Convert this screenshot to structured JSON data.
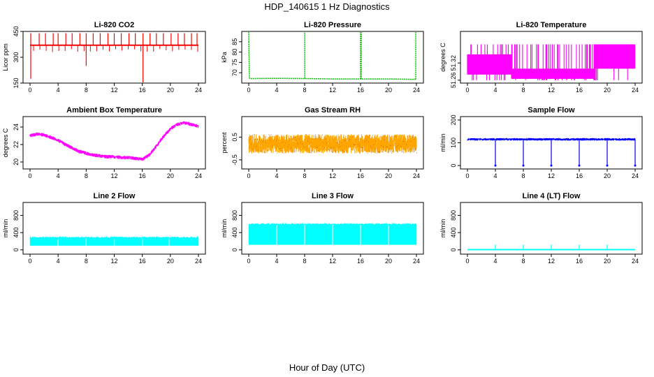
{
  "figure": {
    "title": "HDP_140615  1 Hz Diagnostics",
    "xlabel": "Hour of Day (UTC)"
  },
  "chart_data": [
    {
      "type": "line",
      "title": "Li-820 CO2",
      "ylabel": "Licor ppm",
      "xlim": [
        0,
        24
      ],
      "ylim": [
        150,
        450
      ],
      "xticks": [
        0,
        4,
        8,
        12,
        16,
        20,
        24
      ],
      "yticks": [
        150,
        300,
        450
      ],
      "color": "#ff0000",
      "style": "spiky",
      "series": [
        {
          "x": [
            0,
            2,
            4,
            6,
            8,
            10,
            12,
            14,
            16,
            18,
            20,
            22,
            24
          ],
          "y": [
            370,
            370,
            370,
            370,
            370,
            370,
            370,
            370,
            370,
            370,
            370,
            370,
            370
          ]
        }
      ],
      "spikes_up": [
        0.1,
        1.3,
        2.2,
        3.3,
        4.0,
        5.1,
        6.0,
        7.1,
        8.0,
        9.0,
        10.0,
        11.1,
        12.0,
        13.0,
        14.1,
        15.0,
        16.1,
        17.1,
        18.0,
        19.0,
        20.1,
        21.1,
        22.0,
        23.0,
        23.8
      ],
      "spike_up_value": 440,
      "spikes_down": [
        {
          "x": 0.1,
          "y": 175
        },
        {
          "x": 8.0,
          "y": 250
        },
        {
          "x": 16.1,
          "y": 150
        }
      ]
    },
    {
      "type": "line",
      "title": "Li-820 Pressure",
      "ylabel": "kPa",
      "xlim": [
        0,
        24
      ],
      "ylim": [
        65,
        90
      ],
      "xticks": [
        0,
        4,
        8,
        12,
        16,
        20,
        24
      ],
      "yticks": [
        70,
        75,
        80,
        85
      ],
      "color": "#00c000",
      "style": "dotted",
      "series": [
        {
          "x": [
            0,
            0.1,
            0.2,
            4,
            8,
            12,
            16,
            20,
            24
          ],
          "y": [
            85,
            67.5,
            67.2,
            67.3,
            67.2,
            67.0,
            67.0,
            67.0,
            66.8
          ]
        }
      ],
      "spikes_up": [
        0.0,
        8.0,
        16.0,
        16.1,
        23.9
      ],
      "spike_up_value": 90
    },
    {
      "type": "line",
      "title": "Li-820 Temperature",
      "ylabel": "degrees C",
      "xlim": [
        0,
        24
      ],
      "ylim": [
        51.25,
        51.43
      ],
      "xticks": [
        0,
        4,
        8,
        12,
        16,
        20,
        24
      ],
      "yticks": [
        51.26,
        51.32
      ],
      "color": "#ff00ff",
      "style": "bands",
      "series": [
        {
          "x": [
            0,
            6,
            6.5,
            18,
            18.3,
            24
          ],
          "y": [
            51.35,
            51.35,
            51.3,
            51.3,
            51.35,
            51.38
          ]
        }
      ]
    },
    {
      "type": "line",
      "title": "Ambient Box Temperature",
      "ylabel": "degrees C",
      "xlim": [
        0,
        24
      ],
      "ylim": [
        19.2,
        25.2
      ],
      "xticks": [
        0,
        4,
        8,
        12,
        16,
        20,
        24
      ],
      "yticks": [
        20,
        22,
        24
      ],
      "color": "#ff00ff",
      "style": "noisy",
      "noise": 0.3,
      "series": [
        {
          "x": [
            0,
            1,
            2,
            3,
            4,
            5,
            6,
            7,
            8,
            9,
            10,
            11,
            12,
            13,
            14,
            15,
            16,
            17,
            18,
            19,
            20,
            21,
            22,
            23,
            24
          ],
          "y": [
            23.0,
            23.2,
            23.1,
            22.8,
            22.5,
            22.0,
            21.6,
            21.2,
            21.0,
            20.8,
            20.7,
            20.6,
            20.6,
            20.5,
            20.5,
            20.4,
            20.3,
            20.8,
            21.8,
            22.9,
            23.8,
            24.3,
            24.5,
            24.3,
            24.1
          ]
        }
      ]
    },
    {
      "type": "line",
      "title": "Gas Stream RH",
      "ylabel": "percent",
      "xlim": [
        0,
        24
      ],
      "ylim": [
        -0.9,
        1.4
      ],
      "xticks": [
        0,
        4,
        8,
        12,
        16,
        20,
        24
      ],
      "yticks": [
        -0.5,
        0.5
      ],
      "color": "#ffa500",
      "style": "noiseband",
      "noise": 0.6,
      "series": [
        {
          "x": [
            0,
            24
          ],
          "y": [
            0.2,
            0.2
          ]
        }
      ]
    },
    {
      "type": "line",
      "title": "Sample Flow",
      "ylabel": "ml/min",
      "xlim": [
        0,
        24
      ],
      "ylim": [
        -15,
        215
      ],
      "xticks": [
        0,
        4,
        8,
        12,
        16,
        20,
        24
      ],
      "yticks": [
        0,
        100,
        200
      ],
      "color": "#0000ff",
      "style": "noisy",
      "noise": 8,
      "series": [
        {
          "x": [
            0,
            24
          ],
          "y": [
            115,
            115
          ]
        }
      ],
      "spikes_down": [
        {
          "x": 4.0,
          "y": 0
        },
        {
          "x": 8.0,
          "y": 0
        },
        {
          "x": 12.0,
          "y": 0
        },
        {
          "x": 16.0,
          "y": 0
        },
        {
          "x": 20.0,
          "y": 0
        },
        {
          "x": 24.0,
          "y": 0
        }
      ]
    },
    {
      "type": "area",
      "title": "Line 2 Flow",
      "ylabel": "ml/min",
      "xlim": [
        0,
        24
      ],
      "ylim": [
        -100,
        1100
      ],
      "xticks": [
        0,
        4,
        8,
        12,
        16,
        20,
        24
      ],
      "yticks": [
        0,
        400,
        800
      ],
      "color": "#00ffff",
      "style": "block",
      "series": [
        {
          "x": [
            0,
            24
          ],
          "low": [
            100,
            100
          ],
          "high": [
            280,
            280
          ]
        }
      ],
      "gaps": [
        4.0,
        8.0,
        12.0,
        16.0,
        19.8
      ]
    },
    {
      "type": "area",
      "title": "Line 3 Flow",
      "ylabel": "ml/min",
      "xlim": [
        0,
        24
      ],
      "ylim": [
        -100,
        1100
      ],
      "xticks": [
        0,
        4,
        8,
        12,
        16,
        20,
        24
      ],
      "yticks": [
        0,
        400,
        800
      ],
      "color": "#00ffff",
      "style": "block",
      "series": [
        {
          "x": [
            0,
            24
          ],
          "low": [
            120,
            120
          ],
          "high": [
            590,
            590
          ]
        }
      ],
      "gaps": [
        4.0,
        8.0,
        12.0,
        16.0,
        20.0
      ]
    },
    {
      "type": "line",
      "title": "Line 4 (LT) Flow",
      "ylabel": "ml/min",
      "xlim": [
        0,
        24
      ],
      "ylim": [
        -100,
        1100
      ],
      "xticks": [
        0,
        4,
        8,
        12,
        16,
        20,
        24
      ],
      "yticks": [
        0,
        400,
        800
      ],
      "color": "#00ffff",
      "style": "spiky",
      "series": [
        {
          "x": [
            0,
            24
          ],
          "y": [
            5,
            5
          ]
        }
      ],
      "spikes_up": [
        4.0,
        8.0,
        12.0,
        16.0,
        20.0
      ],
      "spike_up_value": 120
    }
  ]
}
